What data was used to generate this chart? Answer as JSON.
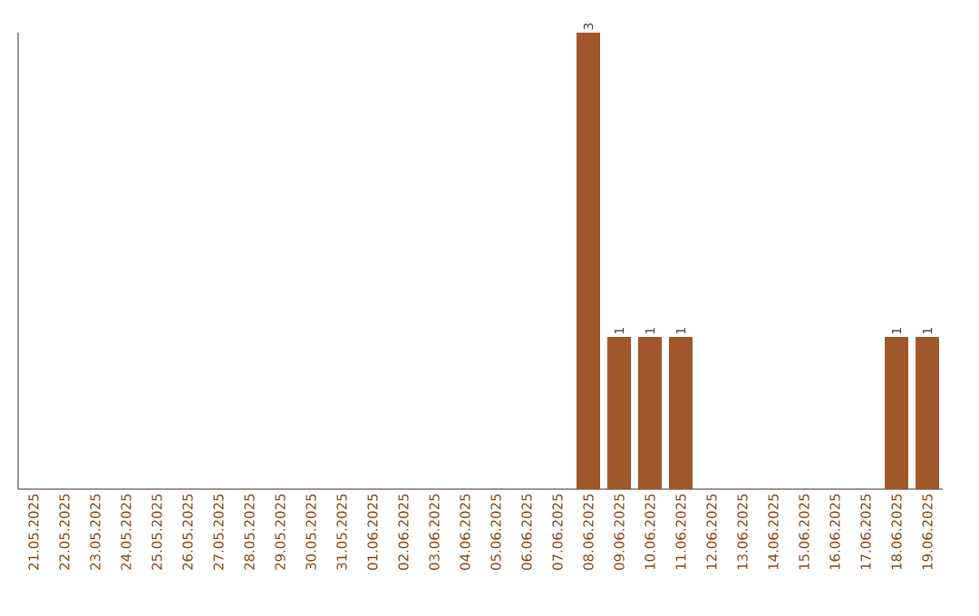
{
  "chart_data": {
    "type": "bar",
    "categories": [
      "21.05.2025",
      "22.05.2025",
      "23.05.2025",
      "24.05.2025",
      "25.05.2025",
      "26.05.2025",
      "27.05.2025",
      "28.05.2025",
      "29.05.2025",
      "30.05.2025",
      "31.05.2025",
      "01.06.2025",
      "02.06.2025",
      "03.06.2025",
      "04.06.2025",
      "05.06.2025",
      "06.06.2025",
      "07.06.2025",
      "08.06.2025",
      "09.06.2025",
      "10.06.2025",
      "11.06.2025",
      "12.06.2025",
      "13.06.2025",
      "14.06.2025",
      "15.06.2025",
      "16.06.2025",
      "17.06.2025",
      "18.06.2025",
      "19.06.2025"
    ],
    "values": [
      null,
      null,
      null,
      null,
      null,
      null,
      null,
      null,
      null,
      null,
      null,
      null,
      null,
      null,
      null,
      null,
      null,
      null,
      3,
      1,
      1,
      1,
      null,
      null,
      null,
      null,
      null,
      null,
      1,
      1
    ],
    "data_labels": true,
    "color": "#a0572a",
    "grid": false
  }
}
